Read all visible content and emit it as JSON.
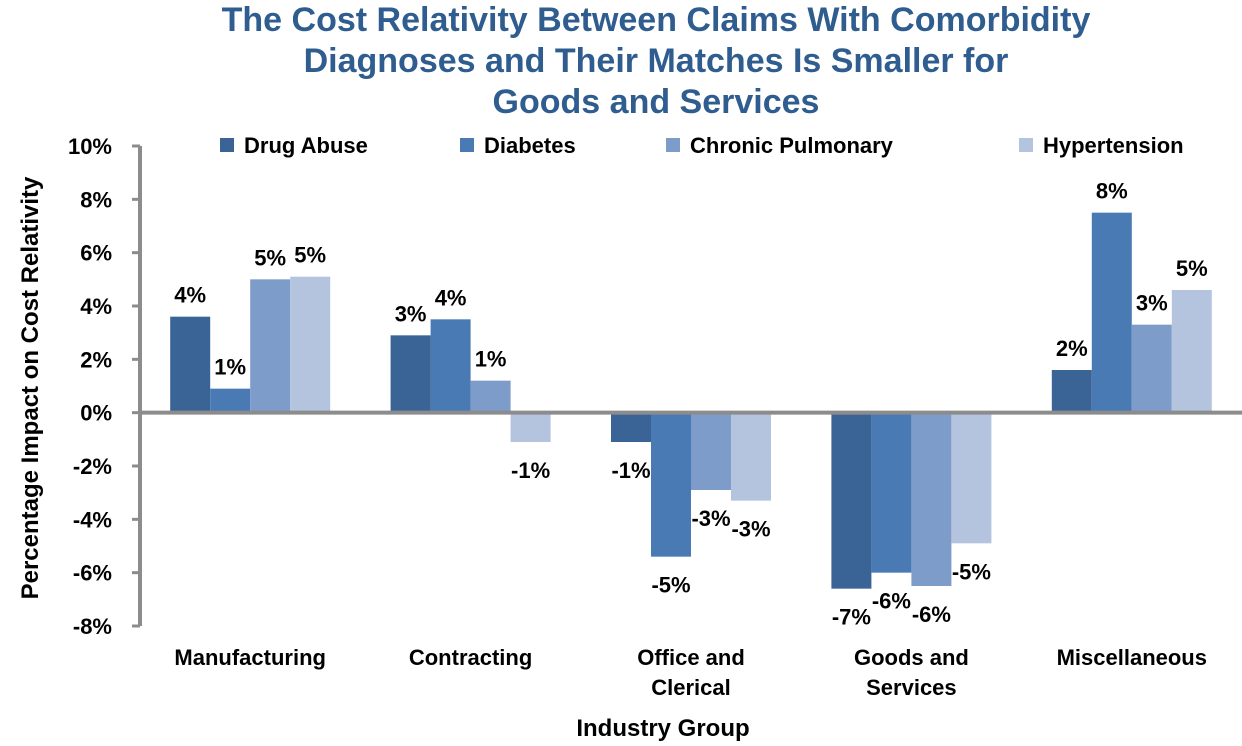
{
  "chart_data": {
    "type": "bar",
    "title_lines": [
      "The Cost Relativity Between Claims With Comorbidity",
      "Diagnoses and Their Matches Is Smaller for",
      "Goods and Services"
    ],
    "xlabel": "Industry Group",
    "ylabel": "Percentage Impact on Cost Relativity",
    "ylim": [
      -8,
      10
    ],
    "yticks": [
      10,
      8,
      6,
      4,
      2,
      0,
      -2,
      -4,
      -6,
      -8
    ],
    "ytick_labels": [
      "10%",
      "8%",
      "6%",
      "4%",
      "2%",
      "0%",
      "-2%",
      "-4%",
      "-6%",
      "-8%"
    ],
    "categories": [
      [
        "Manufacturing"
      ],
      [
        "Contracting"
      ],
      [
        "Office and",
        "Clerical"
      ],
      [
        "Goods and",
        "Services"
      ],
      [
        "Miscellaneous"
      ]
    ],
    "legend_position": "top",
    "series": [
      {
        "name": "Drug Abuse",
        "color": "#3b6496",
        "values": [
          3.6,
          2.9,
          -1.1,
          -6.6,
          1.6
        ],
        "labels": [
          "4%",
          "3%",
          "-1%",
          "-7%",
          "2%"
        ]
      },
      {
        "name": "Diabetes",
        "color": "#4a7ab4",
        "values": [
          0.9,
          3.5,
          -5.4,
          -6.0,
          7.5
        ],
        "labels": [
          "1%",
          "4%",
          "-5%",
          "-6%",
          "8%"
        ]
      },
      {
        "name": "Chronic Pulmonary",
        "color": "#7d9cc9",
        "values": [
          5.0,
          1.2,
          -2.9,
          -6.5,
          3.3
        ],
        "labels": [
          "5%",
          "1%",
          "-3%",
          "-6%",
          "3%"
        ]
      },
      {
        "name": "Hypertension",
        "color": "#b5c4de",
        "values": [
          5.1,
          -1.1,
          -3.3,
          -4.9,
          4.6
        ],
        "labels": [
          "5%",
          "-1%",
          "-3%",
          "-5%",
          "5%"
        ]
      }
    ]
  }
}
